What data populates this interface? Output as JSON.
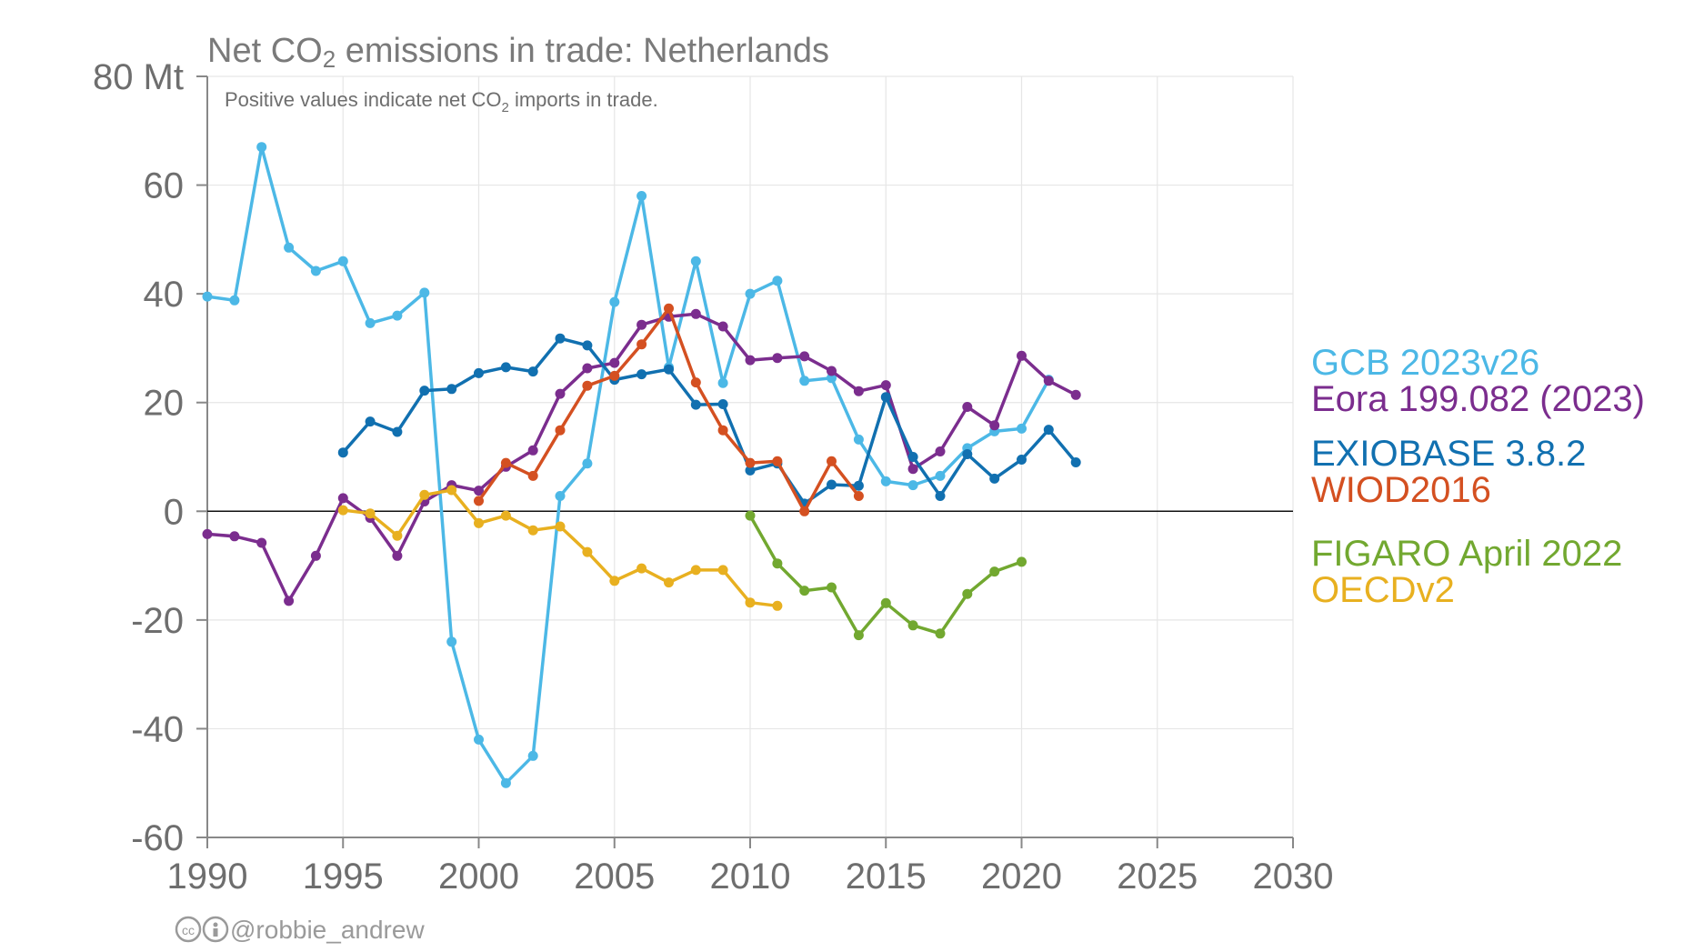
{
  "chart_data": {
    "type": "line",
    "title": "Net CO₂ emissions in trade: Netherlands",
    "subtitle": "Positive values indicate net CO₂ imports in trade.",
    "xlabel": "",
    "ylabel": "",
    "xlim": [
      1990,
      2030
    ],
    "ylim": [
      -60,
      80
    ],
    "x_ticks": [
      1990,
      1995,
      2000,
      2005,
      2010,
      2015,
      2020,
      2025,
      2030
    ],
    "y_ticks": [
      -60,
      -40,
      -20,
      0,
      20,
      40,
      60,
      80
    ],
    "y_tick_labels": [
      "-60",
      "-40",
      "-20",
      "0",
      "20",
      "40",
      "60",
      "80 Mt"
    ],
    "grid": true,
    "legend_position": "right",
    "series": [
      {
        "name": "GCB 2023v26",
        "color": "#4cb8e6",
        "points": [
          [
            1990,
            39.5
          ],
          [
            1991,
            38.8
          ],
          [
            1992,
            67
          ],
          [
            1993,
            48.5
          ],
          [
            1994,
            44.2
          ],
          [
            1995,
            46
          ],
          [
            1996,
            34.6
          ],
          [
            1997,
            36
          ],
          [
            1998,
            40.2
          ],
          [
            1999,
            -24
          ],
          [
            2000,
            -42
          ],
          [
            2001,
            -50
          ],
          [
            2002,
            -45
          ],
          [
            2003,
            2.8
          ],
          [
            2004,
            8.8
          ],
          [
            2005,
            38.5
          ],
          [
            2006,
            58
          ],
          [
            2007,
            26.5
          ],
          [
            2008,
            46
          ],
          [
            2009,
            23.6
          ],
          [
            2010,
            40
          ],
          [
            2011,
            42.4
          ],
          [
            2012,
            24
          ],
          [
            2013,
            24.5
          ],
          [
            2014,
            13.2
          ],
          [
            2015,
            5.5
          ],
          [
            2016,
            4.8
          ],
          [
            2017,
            6.5
          ],
          [
            2018,
            11.6
          ],
          [
            2019,
            14.7
          ],
          [
            2020,
            15.2
          ],
          [
            2021,
            24.2
          ]
        ]
      },
      {
        "name": "Eora 199.082 (2023)",
        "color": "#7b2d8e",
        "points": [
          [
            1990,
            -4.2
          ],
          [
            1991,
            -4.6
          ],
          [
            1992,
            -5.8
          ],
          [
            1993,
            -16.5
          ],
          [
            1994,
            -8.2
          ],
          [
            1995,
            2.4
          ],
          [
            1996,
            -1.2
          ],
          [
            1997,
            -8.2
          ],
          [
            1998,
            1.8
          ],
          [
            1999,
            4.8
          ],
          [
            2000,
            3.8
          ],
          [
            2001,
            8.2
          ],
          [
            2002,
            11.2
          ],
          [
            2003,
            21.6
          ],
          [
            2004,
            26.3
          ],
          [
            2005,
            27.3
          ],
          [
            2006,
            34.3
          ],
          [
            2007,
            35.8
          ],
          [
            2008,
            36.3
          ],
          [
            2009,
            34
          ],
          [
            2010,
            27.8
          ],
          [
            2011,
            28.2
          ],
          [
            2012,
            28.5
          ],
          [
            2013,
            25.8
          ],
          [
            2014,
            22.1
          ],
          [
            2015,
            23.2
          ],
          [
            2016,
            7.8
          ],
          [
            2017,
            11
          ],
          [
            2018,
            19.2
          ],
          [
            2019,
            15.8
          ],
          [
            2020,
            28.6
          ],
          [
            2021,
            24
          ],
          [
            2022,
            21.4
          ]
        ]
      },
      {
        "name": "EXIOBASE 3.8.2",
        "color": "#1170b0",
        "points": [
          [
            1995,
            10.8
          ],
          [
            1996,
            16.5
          ],
          [
            1997,
            14.6
          ],
          [
            1998,
            22.2
          ],
          [
            1999,
            22.5
          ],
          [
            2000,
            25.4
          ],
          [
            2001,
            26.5
          ],
          [
            2002,
            25.7
          ],
          [
            2003,
            31.8
          ],
          [
            2004,
            30.5
          ],
          [
            2005,
            24.2
          ],
          [
            2006,
            25.2
          ],
          [
            2007,
            26.1
          ],
          [
            2008,
            19.6
          ],
          [
            2009,
            19.7
          ],
          [
            2010,
            7.5
          ],
          [
            2011,
            8.8
          ],
          [
            2012,
            1.4
          ],
          [
            2013,
            4.9
          ],
          [
            2014,
            4.7
          ],
          [
            2015,
            21
          ],
          [
            2016,
            10
          ],
          [
            2017,
            2.8
          ],
          [
            2018,
            10.5
          ],
          [
            2019,
            6
          ],
          [
            2020,
            9.5
          ],
          [
            2021,
            15
          ],
          [
            2022,
            9
          ]
        ]
      },
      {
        "name": "WIOD2016",
        "color": "#d45021",
        "points": [
          [
            2000,
            1.9
          ],
          [
            2001,
            8.9
          ],
          [
            2002,
            6.5
          ],
          [
            2003,
            14.9
          ],
          [
            2004,
            23.1
          ],
          [
            2005,
            24.9
          ],
          [
            2006,
            30.7
          ],
          [
            2007,
            37.3
          ],
          [
            2008,
            23.7
          ],
          [
            2009,
            14.9
          ],
          [
            2010,
            8.9
          ],
          [
            2011,
            9.2
          ],
          [
            2012,
            0
          ],
          [
            2013,
            9.2
          ],
          [
            2014,
            2.8
          ]
        ]
      },
      {
        "name": "FIGARO April 2022",
        "color": "#72a830",
        "points": [
          [
            2010,
            -0.8
          ],
          [
            2011,
            -9.6
          ],
          [
            2012,
            -14.6
          ],
          [
            2013,
            -14
          ],
          [
            2014,
            -22.8
          ],
          [
            2015,
            -16.9
          ],
          [
            2016,
            -21
          ],
          [
            2017,
            -22.5
          ],
          [
            2018,
            -15.2
          ],
          [
            2019,
            -11.1
          ],
          [
            2020,
            -9.3
          ]
        ]
      },
      {
        "name": "OECDv2",
        "color": "#e8b020",
        "points": [
          [
            1995,
            0.2
          ],
          [
            1996,
            -0.4
          ],
          [
            1997,
            -4.5
          ],
          [
            1998,
            3
          ],
          [
            1999,
            3.9
          ],
          [
            2000,
            -2.2
          ],
          [
            2001,
            -0.8
          ],
          [
            2002,
            -3.5
          ],
          [
            2003,
            -2.8
          ],
          [
            2004,
            -7.5
          ],
          [
            2005,
            -12.8
          ],
          [
            2006,
            -10.5
          ],
          [
            2007,
            -13.1
          ],
          [
            2008,
            -10.8
          ],
          [
            2009,
            -10.8
          ],
          [
            2010,
            -16.8
          ],
          [
            2011,
            -17.4
          ]
        ]
      }
    ]
  },
  "credit": {
    "icons": [
      "cc-icon",
      "attribution-icon"
    ],
    "text": "@robbie_andrew"
  }
}
